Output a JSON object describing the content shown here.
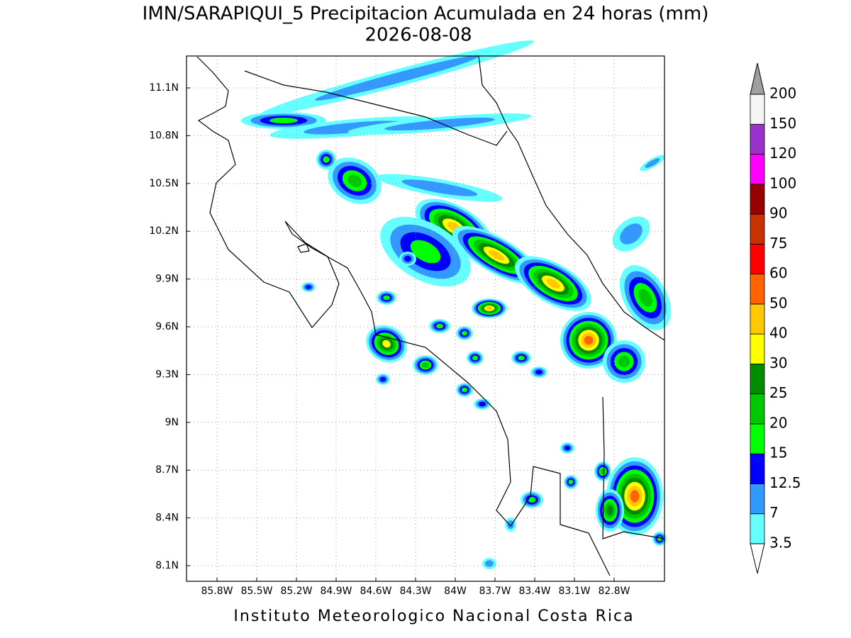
{
  "header": {
    "title": "IMN/SARAPIQUI_5 Precipitacion Acumulada en 24 horas (mm)",
    "date": "2026-08-08"
  },
  "map": {
    "lon_labels": [
      "85.8W",
      "85.5W",
      "85.2W",
      "84.9W",
      "84.6W",
      "84.3W",
      "84W",
      "83.7W",
      "83.4W",
      "83.1W",
      "82.8W"
    ],
    "lat_labels": [
      "11.1N",
      "10.8N",
      "10.5N",
      "10.2N",
      "9.9N",
      "9.6N",
      "9.3N",
      "9N",
      "8.7N",
      "8.4N",
      "8.1N"
    ]
  },
  "colorbar": {
    "levels": [
      3.5,
      7,
      12.5,
      15,
      20,
      25,
      30,
      40,
      50,
      60,
      75,
      90,
      100,
      120,
      150,
      200
    ],
    "colors": [
      "#66ffff",
      "#3399ff",
      "#0000ff",
      "#00ff00",
      "#00c800",
      "#008c00",
      "#ffff00",
      "#ffc800",
      "#ff6400",
      "#ff0000",
      "#c83200",
      "#960000",
      "#ff00ff",
      "#9933cc",
      "#f5f5f5"
    ],
    "under_color": "#ffffff",
    "over_color": "#a0a0a0"
  },
  "footer": "Instituto Meteorologico Nacional Costa Rica"
}
